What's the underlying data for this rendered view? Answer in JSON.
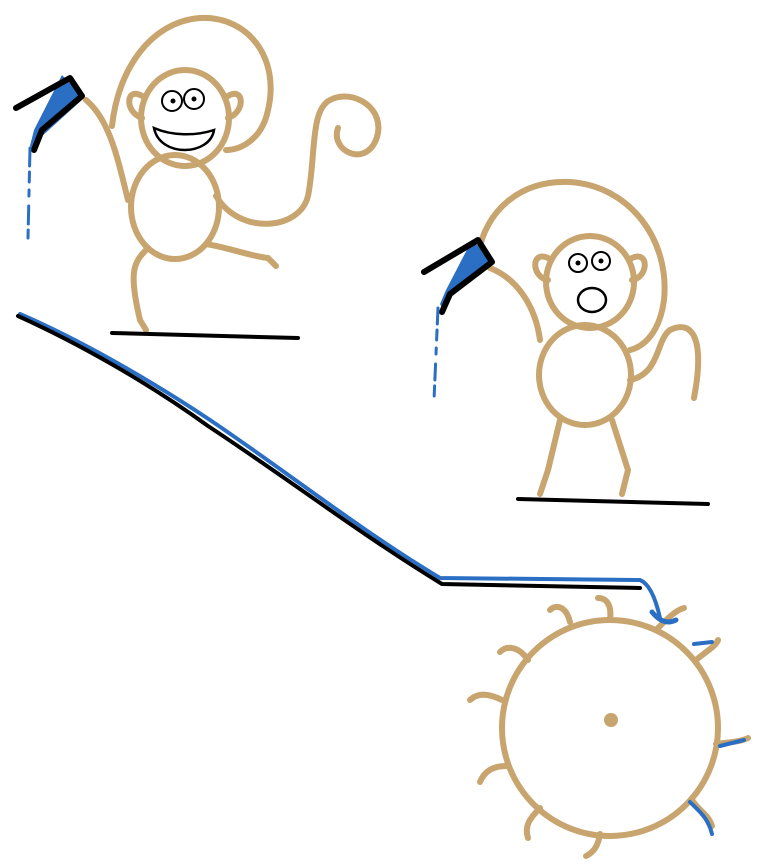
{
  "colors": {
    "background": "#ffffff",
    "monkey": "#c8a46e",
    "water": "#2a6fc4",
    "ink": "#000000"
  },
  "monkeys": [
    {
      "name": "happy-monkey",
      "expression": "smiling",
      "holding": "water-pitcher",
      "pouring": true
    },
    {
      "name": "surprised-monkey",
      "expression": "surprised",
      "holding": "water-pitcher",
      "pouring": true
    }
  ],
  "objects": [
    "ramp-with-water",
    "water-wheel",
    "ground-line-1",
    "ground-line-2"
  ]
}
